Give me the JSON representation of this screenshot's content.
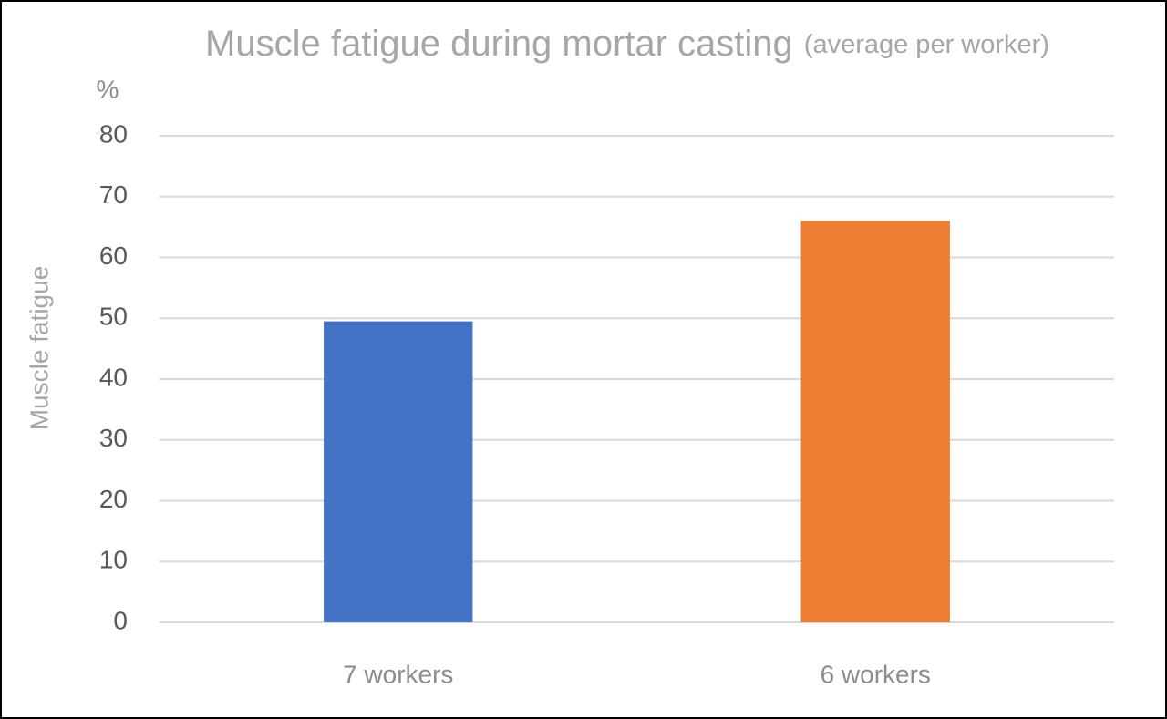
{
  "chart_data": {
    "type": "bar",
    "title": "Muscle fatigue during mortar casting",
    "subtitle": "(average per worker)",
    "y_unit": "%",
    "y_label": "Muscle fatigue",
    "categories": [
      "7 workers",
      "6 workers"
    ],
    "values": [
      49.5,
      66
    ],
    "colors": [
      "#4472c4",
      "#ed7d31"
    ],
    "ylim": [
      0,
      80
    ],
    "yticks": [
      0,
      10,
      20,
      30,
      40,
      50,
      60,
      70,
      80
    ],
    "grid": true
  }
}
